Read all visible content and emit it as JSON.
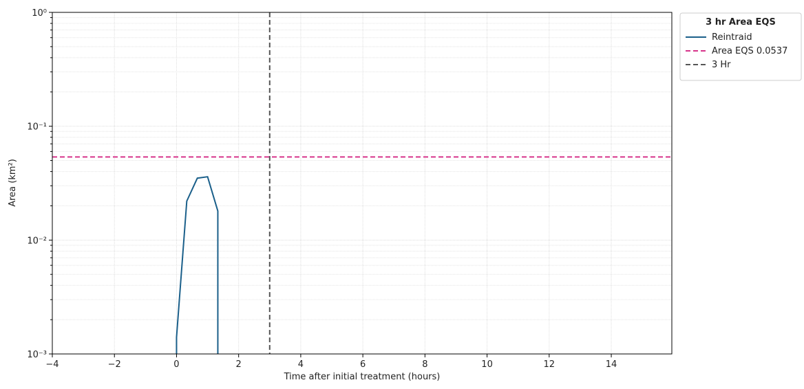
{
  "chart_data": {
    "type": "line",
    "xlabel": "Time after initial treatment (hours)",
    "ylabel": "Area (km²)",
    "xlim": [
      -4,
      15.95
    ],
    "xticks": [
      {
        "value": -4,
        "label": "−4"
      },
      {
        "value": -2,
        "label": "−2"
      },
      0,
      2,
      4,
      6,
      8,
      10,
      12,
      14
    ],
    "ylim": [
      0.001,
      1
    ],
    "yticks": [
      {
        "value": 0.001,
        "label": "10⁻³"
      },
      {
        "value": 0.01,
        "label": "10⁻²"
      },
      {
        "value": 0.1,
        "label": "10⁻¹"
      },
      {
        "value": 1,
        "label": "10⁰"
      }
    ],
    "log_y": true,
    "grid": true,
    "legend_title": "3 hr Area EQS",
    "legend_position": "outside-upper-right",
    "series": [
      {
        "name": "Reintraid",
        "color": "#1a5f8a",
        "x": [
          0,
          0,
          0.33,
          0.67,
          1.0,
          1.33,
          1.33
        ],
        "values": [
          0.001,
          0.0014,
          0.022,
          0.035,
          0.036,
          0.018,
          0.001
        ]
      }
    ],
    "hlines": [
      {
        "name": "Area EQS 0.0537",
        "value": 0.0537,
        "color": "#d6338a"
      }
    ],
    "vlines": [
      {
        "name": "3 Hr",
        "value": 3,
        "color": "#555555"
      }
    ]
  }
}
